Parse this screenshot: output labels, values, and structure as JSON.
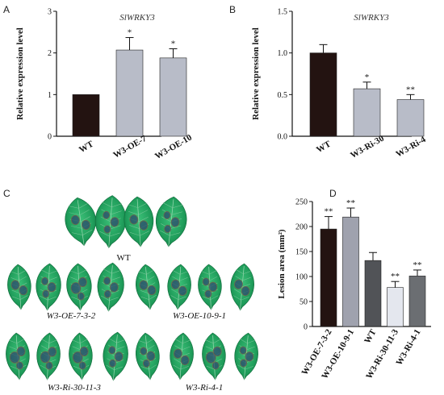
{
  "panels": {
    "A": "A",
    "B": "B",
    "C": "C",
    "D": "D"
  },
  "chart_data": [
    {
      "id": "A",
      "type": "bar",
      "title": "SlWRKY3",
      "ylabel": "Relative expression level",
      "ylim": [
        0,
        3
      ],
      "yticks": [
        "0",
        "1",
        "2",
        "3"
      ],
      "categories": [
        "WT",
        "W3-OE-7",
        "W3-OE-10"
      ],
      "values": [
        1.0,
        2.07,
        1.88
      ],
      "errors": [
        0.01,
        0.3,
        0.22
      ],
      "stars": [
        "",
        "*",
        "*"
      ],
      "colors": [
        "#231311",
        "#b8bcc8",
        "#b8bcc8"
      ]
    },
    {
      "id": "B",
      "type": "bar",
      "title": "SlWRKY3",
      "ylabel": "Relative expression level",
      "ylim": [
        0,
        1.5
      ],
      "yticks": [
        "0.0",
        "0.5",
        "1.0",
        "1.5"
      ],
      "categories": [
        "WT",
        "W3-Ri-30",
        "W3-Ri-4"
      ],
      "values": [
        1.0,
        0.57,
        0.44
      ],
      "errors": [
        0.1,
        0.08,
        0.06
      ],
      "stars": [
        "",
        "*",
        "**"
      ],
      "colors": [
        "#231311",
        "#b8bcc8",
        "#b8bcc8"
      ]
    },
    {
      "id": "D",
      "type": "bar",
      "title": "",
      "ylabel": "Lesion area (mm²)",
      "ylim": [
        0,
        250
      ],
      "yticks": [
        "0",
        "50",
        "100",
        "150",
        "200",
        "250"
      ],
      "categories": [
        "W3-OE-7-3-2",
        "W3-OE-10-9-1",
        "WT",
        "W3-Ri-30-11-3",
        "W3-Ri-4-1"
      ],
      "values": [
        195,
        219,
        132,
        78,
        101
      ],
      "errors": [
        25,
        18,
        16,
        12,
        12
      ],
      "stars": [
        "**",
        "**",
        "",
        "**",
        "**"
      ],
      "colors": [
        "#231311",
        "#9fa2ae",
        "#515357",
        "#e4e7ee",
        "#6b6e72"
      ]
    }
  ],
  "leaves": {
    "wt_label": "WT",
    "oe1_label": "W3-OE-7-3-2",
    "oe2_label": "W3-OE-10-9-1",
    "ri1_label": "W3-Ri-30-11-3",
    "ri2_label": "W3-Ri-4-1",
    "leaf_color": "#1f9c5a",
    "lesion_color": "#2e4a6e"
  }
}
